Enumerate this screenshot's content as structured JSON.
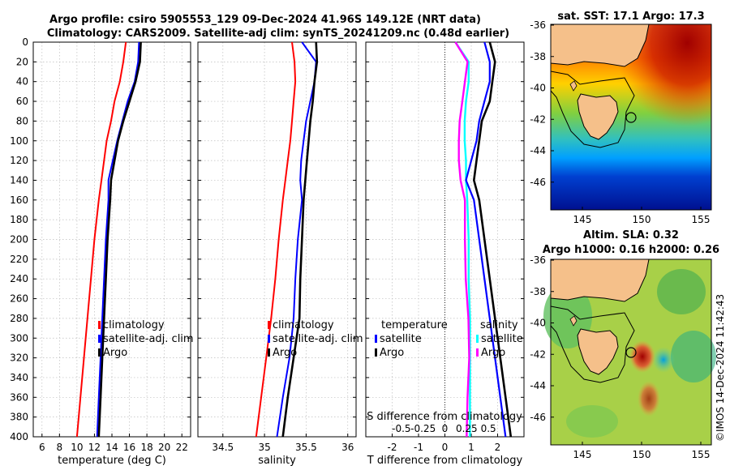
{
  "title_line1": "Argo profile: csiro 5905553_129 09-Dec-2024 41.96S 149.12E (NRT data)",
  "title_line2": "Climatology: CARS2009. Satellite-adj clim: synTS_20241209.nc (0.48d earlier)",
  "depth_ticks": [
    "0",
    "20",
    "40",
    "60",
    "80",
    "100",
    "120",
    "140",
    "160",
    "180",
    "200",
    "220",
    "240",
    "260",
    "280",
    "300",
    "320",
    "340",
    "360",
    "380",
    "400"
  ],
  "colors": {
    "climatology": "#ff0000",
    "satellite": "#0000ff",
    "argo": "#000000",
    "salinity": "#ff00ff",
    "temp_diff": "#00ffff"
  },
  "panels": {
    "temperature": {
      "xlabel": "temperature (deg C)",
      "xticks": [
        "6",
        "8",
        "10",
        "12",
        "14",
        "16",
        "18",
        "20",
        "22"
      ],
      "legend": [
        "climatology",
        "satellite-adj. clim",
        "Argo"
      ]
    },
    "salinity": {
      "xlabel": "salinity",
      "xticks": [
        "34.5",
        "35",
        "35.5",
        "36"
      ],
      "legend": [
        "climatology",
        "satellite-adj. clim",
        "Argo"
      ]
    },
    "difference": {
      "xlabel": "T difference from climatology",
      "xticks": [
        "-2",
        "-1",
        "0",
        "1",
        "2"
      ],
      "s_label": "S difference from climatology",
      "s_ticks": [
        "-0.5",
        "-0.25",
        "0",
        "0.25",
        "0.5"
      ],
      "legend_temp_title": "temperature",
      "legend_temp_items": [
        "satellite",
        "Argo"
      ],
      "legend_sal_title": "salinity",
      "legend_sal_items": [
        "satellite",
        "Argo"
      ]
    }
  },
  "maps": {
    "sst_title": "sat. SST: 17.1 Argo: 17.3",
    "sla_title_line1": "Altim. SLA: 0.32",
    "sla_title_line2": "Argo h1000: 0.16 h2000: 0.26",
    "lat_ticks": [
      "-36",
      "-38",
      "-40",
      "-42",
      "-44",
      "-46"
    ],
    "lon_ticks": [
      "145",
      "150",
      "155"
    ]
  },
  "credit": "©IMOS 14-Dec-2024 11:42:43",
  "chart_data": [
    {
      "type": "line",
      "title": "Argo profile: csiro 5905553_129 09-Dec-2024 41.96S 149.12E (NRT data)",
      "xlabel": "temperature (deg C)",
      "ylabel": "depth",
      "xlim": [
        5,
        23
      ],
      "ylim": [
        0,
        400
      ],
      "series": [
        {
          "name": "climatology",
          "y": [
            0,
            20,
            40,
            60,
            80,
            100,
            120,
            140,
            160,
            200,
            240,
            280,
            320,
            360,
            400
          ],
          "x": [
            15.6,
            15.3,
            14.9,
            14.3,
            13.9,
            13.4,
            13.1,
            12.8,
            12.5,
            12.0,
            11.6,
            11.2,
            10.8,
            10.4,
            10.0
          ]
        },
        {
          "name": "satellite-adj. clim",
          "y": [
            0,
            20,
            40,
            60,
            80,
            100,
            120,
            140,
            160,
            200,
            240,
            280,
            320,
            360,
            400
          ],
          "x": [
            17.1,
            17.0,
            16.6,
            15.8,
            15.2,
            14.6,
            14.1,
            13.6,
            13.6,
            13.3,
            13.1,
            12.9,
            12.7,
            12.5,
            12.3
          ]
        },
        {
          "name": "Argo",
          "y": [
            0,
            20,
            40,
            60,
            80,
            100,
            120,
            140,
            160,
            200,
            240,
            280,
            320,
            360,
            400
          ],
          "x": [
            17.3,
            17.2,
            16.7,
            16.0,
            15.3,
            14.7,
            14.3,
            13.9,
            13.8,
            13.5,
            13.3,
            13.1,
            12.9,
            12.7,
            12.5
          ]
        }
      ]
    },
    {
      "type": "line",
      "xlabel": "salinity",
      "ylabel": "depth",
      "xlim": [
        34.2,
        36.1
      ],
      "ylim": [
        0,
        400
      ],
      "series": [
        {
          "name": "climatology",
          "y": [
            0,
            20,
            40,
            60,
            80,
            100,
            120,
            140,
            160,
            200,
            240,
            280,
            320,
            360,
            400
          ],
          "x": [
            35.33,
            35.36,
            35.37,
            35.35,
            35.33,
            35.31,
            35.28,
            35.25,
            35.22,
            35.17,
            35.13,
            35.08,
            35.02,
            34.96,
            34.9
          ]
        },
        {
          "name": "satellite-adj. clim",
          "y": [
            0,
            20,
            40,
            60,
            80,
            100,
            120,
            140,
            160,
            200,
            240,
            280,
            320,
            360,
            400
          ],
          "x": [
            35.45,
            35.62,
            35.6,
            35.55,
            35.5,
            35.47,
            35.44,
            35.43,
            35.45,
            35.4,
            35.37,
            35.35,
            35.3,
            35.22,
            35.15
          ]
        },
        {
          "name": "Argo",
          "y": [
            0,
            20,
            40,
            60,
            80,
            100,
            120,
            140,
            160,
            200,
            240,
            280,
            320,
            360,
            400
          ],
          "x": [
            35.62,
            35.63,
            35.6,
            35.58,
            35.55,
            35.53,
            35.51,
            35.49,
            35.47,
            35.45,
            35.43,
            35.42,
            35.35,
            35.28,
            35.22
          ]
        }
      ]
    },
    {
      "type": "line",
      "xlabel": "T difference from climatology",
      "x2label": "S difference from climatology",
      "ylabel": "depth",
      "xlim": [
        -3,
        3
      ],
      "ylim": [
        0,
        400
      ],
      "series": [
        {
          "name": "temperature satellite",
          "y": [
            0,
            20,
            40,
            60,
            80,
            100,
            120,
            140,
            160,
            200,
            240,
            280,
            320,
            360,
            400
          ],
          "x": [
            1.5,
            1.7,
            1.7,
            1.5,
            1.3,
            1.2,
            1.0,
            0.8,
            1.1,
            1.3,
            1.5,
            1.7,
            1.9,
            2.1,
            2.3
          ]
        },
        {
          "name": "temperature Argo",
          "y": [
            0,
            20,
            40,
            60,
            80,
            100,
            120,
            140,
            160,
            200,
            240,
            280,
            320,
            360,
            400
          ],
          "x": [
            1.7,
            1.9,
            1.8,
            1.7,
            1.4,
            1.3,
            1.2,
            1.1,
            1.3,
            1.5,
            1.7,
            1.9,
            2.1,
            2.3,
            2.5
          ]
        },
        {
          "name": "salinity satellite",
          "y": [
            0,
            20,
            40,
            60,
            80,
            100,
            120,
            140,
            160,
            200,
            240,
            280,
            320,
            360,
            400
          ],
          "x": [
            0.12,
            0.26,
            0.23,
            0.2,
            0.17,
            0.16,
            0.16,
            0.18,
            0.23,
            0.23,
            0.24,
            0.27,
            0.28,
            0.26,
            0.25
          ]
        },
        {
          "name": "salinity Argo",
          "y": [
            0,
            20,
            40,
            60,
            80,
            100,
            120,
            140,
            160,
            200,
            240,
            280,
            320,
            360,
            400
          ],
          "x": [
            0.29,
            0.27,
            0.23,
            0.23,
            0.22,
            0.22,
            0.23,
            0.24,
            0.25,
            0.28,
            0.3,
            0.34,
            0.33,
            0.32,
            0.32
          ]
        },
        {
          "name": "temperature satellite (cyan)",
          "y": [
            0,
            20,
            40,
            60,
            80,
            100,
            120,
            140,
            160,
            200,
            240,
            280,
            320,
            360,
            400
          ],
          "x": [
            0.4,
            0.9,
            0.9,
            0.8,
            0.75,
            0.75,
            0.8,
            0.8,
            0.85,
            0.9,
            0.9,
            0.95,
            0.95,
            0.95,
            0.95
          ]
        }
      ]
    }
  ]
}
